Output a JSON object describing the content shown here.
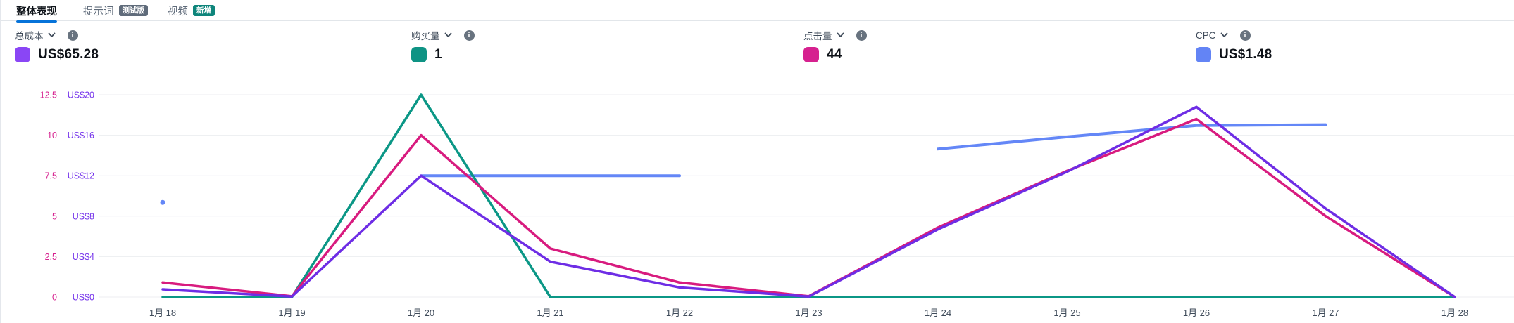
{
  "tabs": [
    {
      "label": "整体表现",
      "active": true,
      "badge": null
    },
    {
      "label": "提示词",
      "active": false,
      "badge": "测试版"
    },
    {
      "label": "视频",
      "active": false,
      "badge": "新增"
    }
  ],
  "metrics": [
    {
      "label": "总成本",
      "value": "US$65.28",
      "color": "#8a46f5"
    },
    {
      "label": "购买量",
      "value": "1",
      "color": "#0e9384"
    },
    {
      "label": "点击量",
      "value": "44",
      "color": "#d6218f"
    },
    {
      "label": "CPC",
      "value": "US$1.48",
      "color": "#6384f5"
    }
  ],
  "icons": {
    "metric_dropdown": "chevron-down",
    "metric_info": "info-circle"
  },
  "chart_data": {
    "type": "line",
    "title": "",
    "x_labels": [
      "1月 18",
      "1月 19",
      "1月 20",
      "1月 21",
      "1月 22",
      "1月 23",
      "1月 24",
      "1月 25",
      "1月 26",
      "1月 27",
      "1月 28"
    ],
    "grid": true,
    "legend_position": "top-metric-cards",
    "left_axis_primary": {
      "label": "点击量",
      "color": "#d6218f",
      "range": [
        0,
        12.5
      ],
      "ticks": [
        "0",
        "2.5",
        "5",
        "7.5",
        "10",
        "12.5"
      ]
    },
    "left_axis_secondary": {
      "label": "总成本",
      "color": "#7533eb",
      "range": [
        0,
        20
      ],
      "ticks": [
        "US$0",
        "US$4",
        "US$8",
        "US$12",
        "US$16",
        "US$20"
      ]
    },
    "hidden_axes_note": "购买量 scaled 0-1, CPC scaled 0-2.5 (axes not displayed)",
    "series": [
      {
        "name": "CPC",
        "key": "cpc",
        "color": "#6487f7",
        "axis_max": 2.5,
        "stroke": 4,
        "values": [
          1.17,
          null,
          1.5,
          1.5,
          1.5,
          null,
          1.83,
          1.98,
          2.12,
          2.13,
          null
        ]
      },
      {
        "name": "购买量",
        "key": "purchases",
        "color": "#0b9786",
        "axis_max": 1,
        "stroke": 3.5,
        "values": [
          0,
          0,
          1,
          0,
          0,
          0,
          0,
          0,
          0,
          0,
          0
        ]
      },
      {
        "name": "点击量",
        "key": "clicks",
        "color": "#d81b7f",
        "axis_max": 12.5,
        "stroke": 3.5,
        "values": [
          0.9,
          0.05,
          10,
          3,
          0.9,
          0.05,
          4.3,
          7.8,
          11,
          5,
          0
        ]
      },
      {
        "name": "总成本",
        "key": "total-cost",
        "color": "#6e2de5",
        "axis_max": 20,
        "stroke": 3.5,
        "values": [
          0.76,
          0.05,
          12,
          3.5,
          0.95,
          0.05,
          6.7,
          12.4,
          18.8,
          8.75,
          0
        ]
      }
    ]
  }
}
